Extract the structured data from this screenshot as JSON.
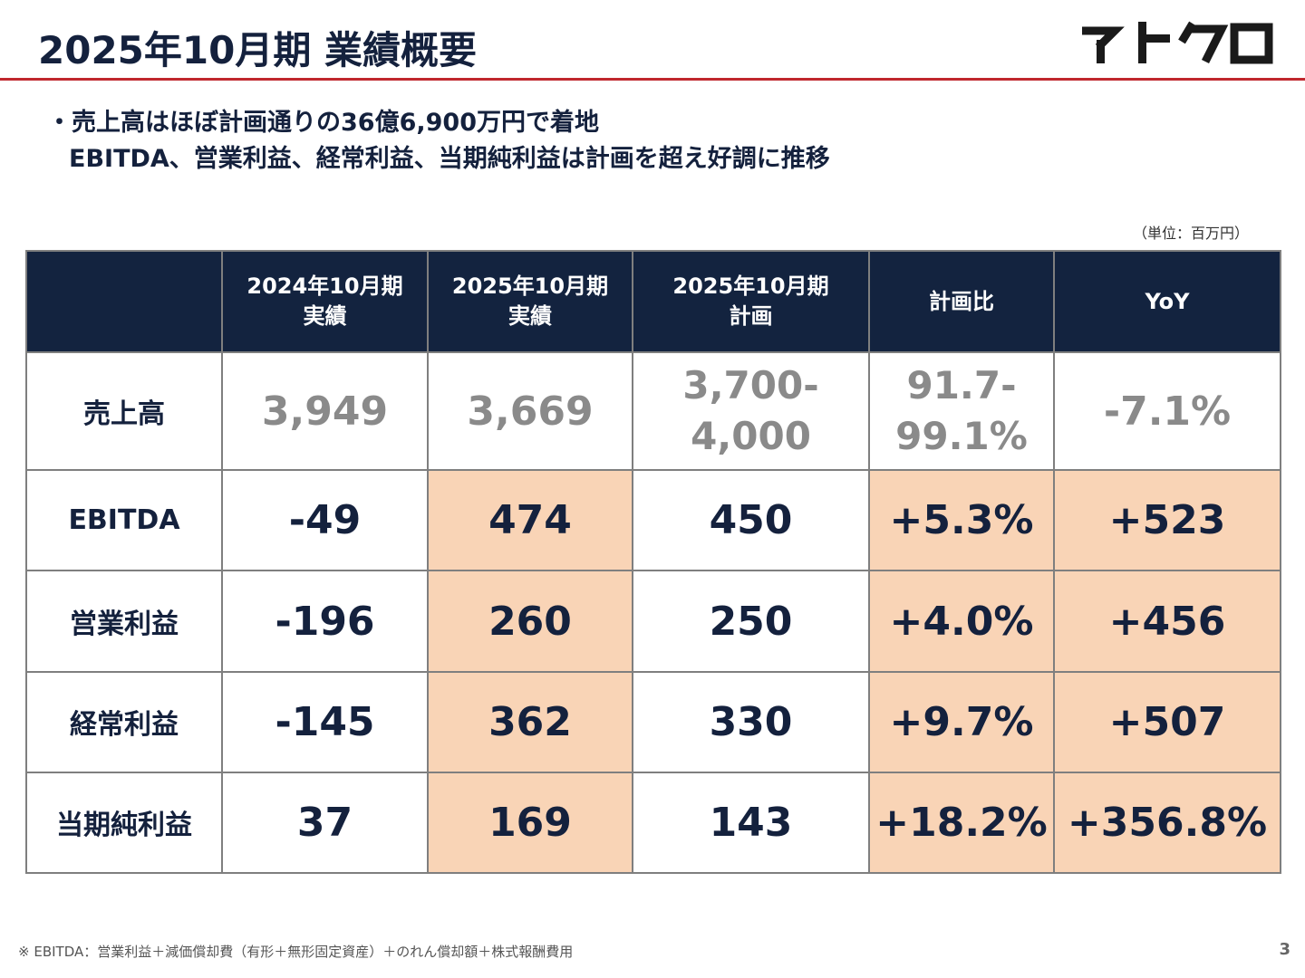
{
  "header": {
    "title": "2025年10月期 業績概要",
    "logo_text": "イトクロ"
  },
  "summary": {
    "line1": "・売上高はほぼ計画通りの36億6,900万円で着地",
    "line2": "EBITDA、営業利益、経常利益、当期純利益は計画を超え好調に推移"
  },
  "unit_note": "（単位：百万円）",
  "table": {
    "headers": [
      {
        "line1": "",
        "line2": ""
      },
      {
        "line1": "2024年10月期",
        "line2": "実績"
      },
      {
        "line1": "2025年10月期",
        "line2": "実績"
      },
      {
        "line1": "2025年10月期",
        "line2": "計画"
      },
      {
        "line1": "計画比",
        "line2": ""
      },
      {
        "line1": "YoY",
        "line2": ""
      }
    ],
    "rows": [
      {
        "label": "売上高",
        "prev": "3,949",
        "actual": "3,669",
        "plan_a": "3,700-",
        "plan_b": "4,000",
        "ratio_a": "91.7-",
        "ratio_b": "99.1%",
        "yoy": "-7.1%"
      },
      {
        "label": "EBITDA",
        "prev": "-49",
        "actual": "474",
        "plan": "450",
        "ratio": "+5.3%",
        "yoy": "+523"
      },
      {
        "label": "営業利益",
        "prev": "-196",
        "actual": "260",
        "plan": "250",
        "ratio": "+4.0%",
        "yoy": "+456"
      },
      {
        "label": "経常利益",
        "prev": "-145",
        "actual": "362",
        "plan": "330",
        "ratio": "+9.7%",
        "yoy": "+507"
      },
      {
        "label": "当期純利益",
        "prev": "37",
        "actual": "169",
        "plan": "143",
        "ratio": "+18.2%",
        "yoy": "+356.8%"
      }
    ]
  },
  "colors": {
    "header_bg": "#13233f",
    "highlight": "#f9d4b6",
    "accent_rule": "#c0272d",
    "text_navy": "#14213d",
    "muted_gray": "#8a8a8a"
  },
  "footnote": "※ EBITDA：営業利益＋減価償却費（有形＋無形固定資産）＋のれん償却額＋株式報酬費用",
  "page_number": "3"
}
